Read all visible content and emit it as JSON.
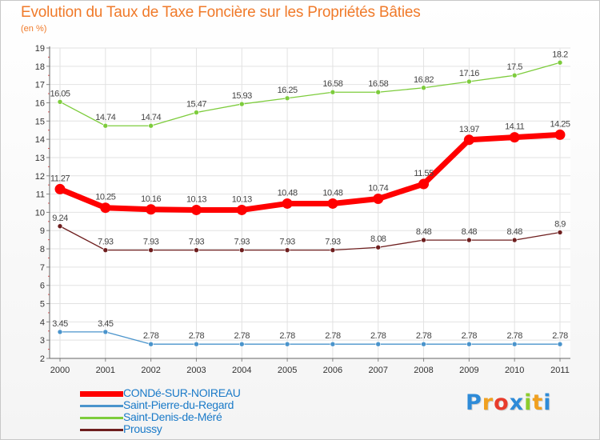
{
  "page": {
    "title": "Evolution du Taux de Taxe Foncière sur les Propriétés Bâties",
    "unit": "(en %)"
  },
  "chart_data": {
    "type": "line",
    "title": "Evolution du Taux de Taxe Foncière sur les Propriétés Bâties",
    "ylabel": "(en %)",
    "xlabel": "",
    "x": [
      "2000",
      "2001",
      "2002",
      "2003",
      "2004",
      "2005",
      "2006",
      "2007",
      "2008",
      "2009",
      "2010",
      "2011"
    ],
    "ylim": [
      2,
      19
    ],
    "yticks": [
      2,
      3,
      4,
      5,
      6,
      7,
      8,
      9,
      10,
      11,
      12,
      13,
      14,
      15,
      16,
      17,
      18,
      19
    ],
    "grid": true,
    "series": [
      {
        "name": "CONDé-SUR-NOIREAU",
        "color": "#ff0000",
        "emphasis": true,
        "values": [
          11.27,
          10.25,
          10.16,
          10.13,
          10.13,
          10.48,
          10.48,
          10.74,
          11.55,
          13.97,
          14.11,
          14.25
        ],
        "labels": [
          "11.27",
          "10.25",
          "10.16",
          "10.13",
          "10.13",
          "10.48",
          "10.48",
          "10.74",
          "11.55",
          "13.97",
          "14.11",
          "14.25"
        ]
      },
      {
        "name": "Saint-Pierre-du-Regard",
        "color": "#4a94cc",
        "emphasis": false,
        "values": [
          3.45,
          3.45,
          2.78,
          2.78,
          2.78,
          2.78,
          2.78,
          2.78,
          2.78,
          2.78,
          2.78,
          2.78
        ],
        "labels": [
          "3.45",
          "3.45",
          "2.78",
          "2.78",
          "2.78",
          "2.78",
          "2.78",
          "2.78",
          "2.78",
          "2.78",
          "2.78",
          "2.78"
        ]
      },
      {
        "name": "Saint-Denis-de-Méré",
        "color": "#7dcc3c",
        "emphasis": false,
        "values": [
          16.05,
          14.74,
          14.74,
          15.47,
          15.93,
          16.25,
          16.58,
          16.58,
          16.82,
          17.16,
          17.5,
          18.2
        ],
        "labels": [
          "16.05",
          "14.74",
          "14.74",
          "15.47",
          "15.93",
          "16.25",
          "16.58",
          "16.58",
          "16.82",
          "17.16",
          "17.5",
          "18.2"
        ]
      },
      {
        "name": "Proussy",
        "color": "#6e1e1e",
        "emphasis": false,
        "values": [
          9.24,
          7.93,
          7.93,
          7.93,
          7.93,
          7.93,
          7.93,
          8.08,
          8.48,
          8.48,
          8.48,
          8.9
        ],
        "labels": [
          "9.24",
          "7.93",
          "7.93",
          "7.93",
          "7.93",
          "7.93",
          "7.93",
          "8.08",
          "8.48",
          "8.48",
          "8.48",
          "8.9"
        ]
      }
    ]
  },
  "legend": {
    "items": [
      {
        "label": "CONDé-SUR-NOIREAU",
        "color": "#ff0000",
        "text_color": "#1a7ac8"
      },
      {
        "label": "Saint-Pierre-du-Regard",
        "color": "#4a94cc",
        "text_color": "#1a7ac8"
      },
      {
        "label": "Saint-Denis-de-Méré",
        "color": "#7dcc3c",
        "text_color": "#1a7ac8"
      },
      {
        "label": "Proussy",
        "color": "#6e1e1e",
        "text_color": "#1a7ac8"
      }
    ]
  },
  "logo": {
    "text": "Proxiti",
    "letter_colors": [
      "#2e8bd8",
      "#f0a020",
      "#e83c2c",
      "#2e8bd8",
      "#8ccc2c",
      "#f0a020",
      "#2e8bd8"
    ]
  }
}
